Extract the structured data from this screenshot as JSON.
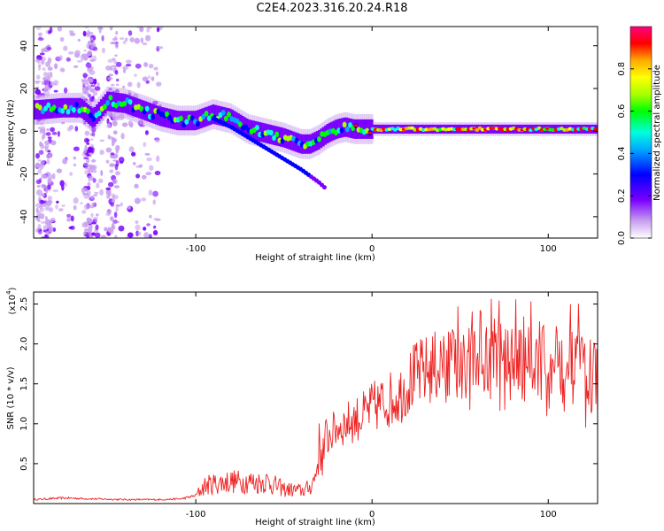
{
  "title": "C2E4.2023.316.20.24.R18",
  "chart_data": [
    {
      "type": "heatmap",
      "title": "C2E4.2023.316.20.24.R18",
      "xlabel": "Height of straight line (km)",
      "ylabel": "Frequency (Hz)",
      "xlim": [
        -192,
        128
      ],
      "ylim": [
        -50,
        49
      ],
      "xticks": [
        -100,
        0,
        100
      ],
      "xtick_labels": [
        "-100",
        "0",
        "100"
      ],
      "yticks": [
        -40,
        -20,
        0,
        20,
        40
      ],
      "ytick_labels": [
        "-40",
        "-20",
        "0",
        "20",
        "40"
      ],
      "colorbar": {
        "label": "Normalized spectral amplitude",
        "range": [
          0.0,
          1.0
        ],
        "ticks": [
          0.0,
          0.2,
          0.4,
          0.6,
          0.8
        ],
        "tick_labels": [
          "0.0",
          "0.2",
          "0.4",
          "0.6",
          "0.8"
        ],
        "colormap": [
          "#ffffff",
          "#c8a0f0",
          "#7a00ff",
          "#0000ff",
          "#00aaff",
          "#00ffdd",
          "#00ff00",
          "#aaff00",
          "#ffff00",
          "#ffaa00",
          "#ff0000",
          "#ff0080"
        ]
      },
      "ridge_x": [
        -190,
        -175,
        -165,
        -158,
        -150,
        -140,
        -130,
        -120,
        -110,
        -100,
        -90,
        -80,
        -70,
        -60,
        -50,
        -40,
        -35,
        -30,
        -25,
        -20,
        -15,
        -10,
        0,
        20,
        40,
        60,
        80,
        100,
        128
      ],
      "ridge_freq": [
        10,
        11,
        11,
        6,
        14,
        13,
        10,
        7,
        5,
        5,
        8,
        6,
        1,
        -1,
        -3,
        -6,
        -6,
        -4,
        -1,
        1,
        2,
        1,
        1,
        1,
        1,
        1,
        1,
        1,
        1
      ],
      "secondary_branch_x": [
        -90,
        -80,
        -70,
        -60,
        -50,
        -40,
        -30,
        -26
      ],
      "secondary_branch_freq": [
        6,
        2,
        -3,
        -8,
        -13,
        -18,
        -24,
        -27
      ],
      "grid": false
    },
    {
      "type": "line",
      "xlabel": "Height of straight line (km)",
      "ylabel": "SNR (10 * v/v)",
      "y_multiplier_label": "(x10",
      "y_multiplier_exp": "4",
      "xlim": [
        -192,
        128
      ],
      "ylim": [
        0,
        26500
      ],
      "xticks": [
        -100,
        0,
        100
      ],
      "xtick_labels": [
        "-100",
        "0",
        "100"
      ],
      "yticks": [
        5000,
        10000,
        15000,
        20000,
        25000
      ],
      "ytick_labels": [
        "0.5",
        "1.0",
        "1.5",
        "2.0",
        "2.5"
      ],
      "series": [
        {
          "color": "#ee2222",
          "x": [
            -192,
            -175,
            -160,
            -140,
            -120,
            -108,
            -100,
            -95,
            -90,
            -85,
            -80,
            -75,
            -70,
            -65,
            -60,
            -55,
            -50,
            -45,
            -40,
            -35,
            -32,
            -30,
            -28,
            -25,
            -22,
            -20,
            -15,
            -10,
            -5,
            0,
            5,
            10,
            15,
            20,
            25,
            30,
            35,
            40,
            45,
            50,
            55,
            60,
            65,
            70,
            75,
            80,
            85,
            90,
            95,
            100,
            105,
            110,
            115,
            120,
            128
          ],
          "y": [
            500,
            700,
            600,
            500,
            500,
            600,
            1000,
            2200,
            2500,
            2600,
            2800,
            2700,
            2800,
            2600,
            2800,
            2300,
            1800,
            1700,
            1600,
            2000,
            3500,
            7000,
            6000,
            8500,
            9000,
            9500,
            10000,
            10500,
            11000,
            12000,
            12500,
            13000,
            13500,
            15000,
            16000,
            16500,
            17000,
            17500,
            17500,
            17000,
            17500,
            18000,
            17500,
            18000,
            18500,
            17500,
            17000,
            17500,
            18000,
            17000,
            17000,
            16500,
            17000,
            16500,
            16000
          ]
        }
      ],
      "grid": false
    }
  ]
}
